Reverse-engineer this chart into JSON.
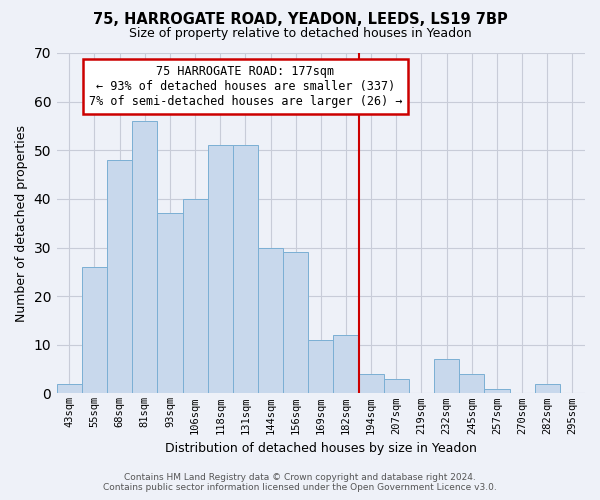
{
  "title1": "75, HARROGATE ROAD, YEADON, LEEDS, LS19 7BP",
  "title2": "Size of property relative to detached houses in Yeadon",
  "xlabel": "Distribution of detached houses by size in Yeadon",
  "ylabel": "Number of detached properties",
  "categories": [
    "43sqm",
    "55sqm",
    "68sqm",
    "81sqm",
    "93sqm",
    "106sqm",
    "118sqm",
    "131sqm",
    "144sqm",
    "156sqm",
    "169sqm",
    "182sqm",
    "194sqm",
    "207sqm",
    "219sqm",
    "232sqm",
    "245sqm",
    "257sqm",
    "270sqm",
    "282sqm",
    "295sqm"
  ],
  "values": [
    2,
    26,
    48,
    56,
    37,
    40,
    51,
    51,
    30,
    29,
    11,
    12,
    4,
    3,
    0,
    7,
    4,
    1,
    0,
    2,
    0
  ],
  "bar_color": "#c8d8ec",
  "bar_edgecolor": "#7bafd4",
  "annotation_title": "75 HARROGATE ROAD: 177sqm",
  "annotation_line1": "← 93% of detached houses are smaller (337)",
  "annotation_line2": "7% of semi-detached houses are larger (26) →",
  "annotation_box_color": "#ffffff",
  "annotation_box_edgecolor": "#cc0000",
  "vline_color": "#cc0000",
  "vline_x_index": 11,
  "ylim": [
    0,
    70
  ],
  "yticks": [
    0,
    10,
    20,
    30,
    40,
    50,
    60,
    70
  ],
  "footer1": "Contains HM Land Registry data © Crown copyright and database right 2024.",
  "footer2": "Contains public sector information licensed under the Open Government Licence v3.0.",
  "bg_color": "#eef1f8",
  "grid_color": "#c8ccd8"
}
